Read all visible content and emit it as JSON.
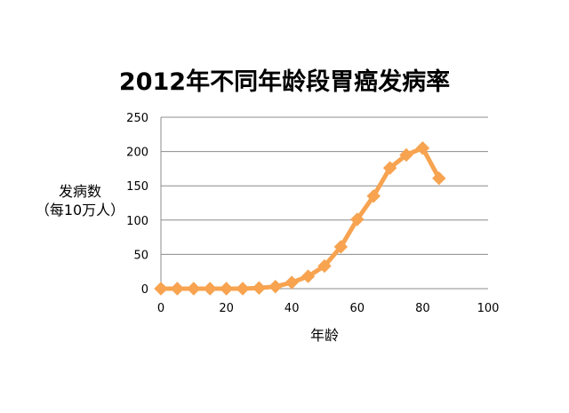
{
  "chart_data": {
    "type": "line",
    "title": "2012年不同年龄段胃癌发病率",
    "xlabel": "年龄",
    "ylabel_line1": "发病数",
    "ylabel_line2": "（每10万人）",
    "xlim": [
      0,
      100
    ],
    "ylim": [
      0,
      250
    ],
    "x_ticks": [
      0,
      20,
      40,
      60,
      80,
      100
    ],
    "y_ticks": [
      0,
      50,
      100,
      150,
      200,
      250
    ],
    "grid": "horizontal",
    "series": [
      {
        "color": "#F7A350",
        "marker": "diamond",
        "x": [
          0,
          5,
          10,
          15,
          20,
          25,
          30,
          35,
          40,
          45,
          50,
          55,
          60,
          65,
          70,
          75,
          80,
          85
        ],
        "y": [
          0,
          0,
          0,
          0,
          0,
          0,
          1,
          3,
          9,
          18,
          33,
          61,
          101,
          135,
          176,
          195,
          205,
          161
        ]
      }
    ]
  }
}
